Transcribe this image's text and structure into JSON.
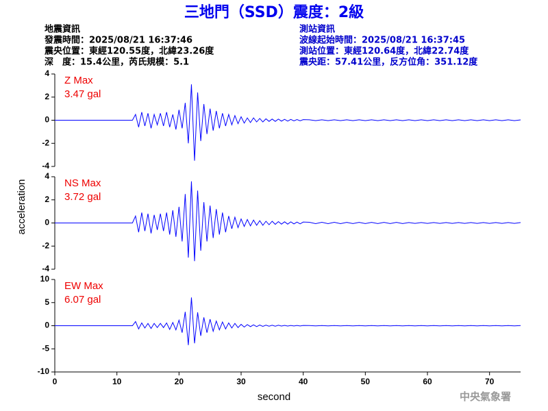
{
  "title": "三地門（SSD）震度：2級",
  "info_left": [
    "地震資訊",
    "發震時間：2025/08/21 16:37:46",
    "震央位置：東經120.55度，北緯23.26度",
    "深　度：15.4公里，芮氏規模：5.1"
  ],
  "info_right": [
    "測站資訊",
    "波線起始時間：2025/08/21 16:37:45",
    "測站位置：東經120.64度，北緯22.74度",
    "震央距：57.41公里，反方位角：351.12度"
  ],
  "y_label": "acceleration",
  "x_label": "second",
  "footer": "中央氣象署",
  "chart_data": [
    {
      "type": "line",
      "color": "#0000ff",
      "annotations": [
        "Z Max",
        "3.47 gal"
      ],
      "xlim": [
        0,
        75
      ],
      "ylim": [
        -4,
        4
      ],
      "yticks": [
        -4,
        -2,
        0,
        2,
        4
      ],
      "x": [
        0,
        12.5,
        13,
        13.5,
        14,
        14.5,
        15,
        15.5,
        16,
        16.5,
        17,
        17.5,
        18,
        18.5,
        19,
        19.5,
        20,
        20.5,
        21,
        21.5,
        22,
        22.5,
        23,
        23.5,
        24,
        24.5,
        25,
        25.5,
        26,
        26.5,
        27,
        27.5,
        28,
        28.5,
        29,
        29.5,
        30,
        30.5,
        31,
        31.5,
        32,
        32.5,
        33,
        33.5,
        34,
        34.5,
        35,
        35.5,
        36,
        36.5,
        37,
        37.5,
        38,
        38.5,
        39,
        39.5,
        40,
        41,
        42,
        43,
        44,
        45,
        46,
        47,
        48,
        49,
        50,
        51,
        52,
        53,
        54,
        55,
        56,
        57,
        58,
        59,
        60,
        61,
        62,
        63,
        64,
        65,
        66,
        67,
        68,
        69,
        70,
        71,
        72,
        73,
        74,
        75
      ],
      "values": [
        0,
        0,
        0.5,
        -0.6,
        0.7,
        -0.5,
        0.6,
        -0.7,
        0.5,
        -0.4,
        0.6,
        -0.5,
        0.7,
        -0.6,
        0.5,
        -0.8,
        0.9,
        -0.7,
        1.5,
        -2.0,
        3.1,
        -3.5,
        2.4,
        -1.8,
        1.4,
        -1.2,
        1.0,
        -0.9,
        0.8,
        -0.7,
        0.6,
        -0.5,
        0.5,
        -0.4,
        0.4,
        -0.3,
        0.3,
        -0.25,
        0.2,
        -0.2,
        0.2,
        -0.15,
        0.15,
        -0.15,
        0.12,
        -0.1,
        0.1,
        -0.1,
        0.1,
        -0.08,
        0.08,
        -0.08,
        0.07,
        -0.06,
        0.06,
        -0.05,
        0.05,
        0.04,
        -0.04,
        0.04,
        -0.04,
        0.04,
        -0.04,
        0.04,
        -0.04,
        0.04,
        -0.04,
        0.04,
        -0.04,
        0.04,
        -0.04,
        0.04,
        -0.04,
        0.04,
        -0.04,
        0.04,
        -0.04,
        0.04,
        -0.04,
        0.04,
        -0.04,
        0.04,
        -0.04,
        0.04,
        -0.04,
        0.04,
        -0.04,
        0.04,
        -0.04,
        0.04,
        -0.04,
        0.03
      ]
    },
    {
      "type": "line",
      "color": "#0000ff",
      "annotations": [
        "NS Max",
        "3.72 gal"
      ],
      "xlim": [
        0,
        75
      ],
      "ylim": [
        -4,
        4
      ],
      "yticks": [
        -4,
        -2,
        0,
        2,
        4
      ],
      "x": [
        0,
        12.5,
        13,
        13.5,
        14,
        14.5,
        15,
        15.5,
        16,
        16.5,
        17,
        17.5,
        18,
        18.5,
        19,
        19.5,
        20,
        20.5,
        21,
        21.5,
        22,
        22.5,
        23,
        23.5,
        24,
        24.5,
        25,
        25.5,
        26,
        26.5,
        27,
        27.5,
        28,
        28.5,
        29,
        29.5,
        30,
        30.5,
        31,
        31.5,
        32,
        32.5,
        33,
        33.5,
        34,
        34.5,
        35,
        35.5,
        36,
        36.5,
        37,
        37.5,
        38,
        38.5,
        39,
        39.5,
        40,
        41,
        42,
        43,
        44,
        45,
        46,
        47,
        48,
        49,
        50,
        51,
        52,
        53,
        54,
        55,
        56,
        57,
        58,
        59,
        60,
        61,
        62,
        63,
        64,
        65,
        66,
        67,
        68,
        69,
        70,
        71,
        72,
        73,
        74,
        75
      ],
      "values": [
        0,
        0,
        0.6,
        -0.8,
        0.9,
        -0.7,
        0.8,
        -0.9,
        0.7,
        -0.6,
        0.8,
        -0.7,
        0.9,
        -1.0,
        1.1,
        -1.2,
        1.4,
        -1.6,
        2.5,
        -3.0,
        3.6,
        -3.3,
        2.8,
        -2.4,
        1.8,
        -1.6,
        1.5,
        -1.3,
        1.2,
        -1.0,
        0.9,
        -0.8,
        0.6,
        -0.5,
        0.5,
        -0.4,
        0.35,
        -0.3,
        0.3,
        -0.25,
        0.25,
        -0.2,
        0.2,
        -0.2,
        0.15,
        -0.15,
        0.15,
        -0.12,
        0.12,
        -0.1,
        0.1,
        -0.1,
        0.1,
        -0.08,
        0.08,
        -0.08,
        0.08,
        0.06,
        -0.06,
        0.06,
        -0.06,
        0.06,
        -0.06,
        0.05,
        -0.05,
        0.05,
        -0.05,
        0.05,
        -0.05,
        0.05,
        -0.05,
        0.05,
        -0.05,
        0.04,
        -0.04,
        0.04,
        -0.04,
        0.04,
        -0.04,
        0.04,
        -0.04,
        0.04,
        -0.04,
        0.04,
        -0.04,
        0.04,
        -0.04,
        0.04,
        -0.04,
        0.04,
        -0.04,
        0.04
      ]
    },
    {
      "type": "line",
      "color": "#0000ff",
      "annotations": [
        "EW Max",
        "6.07 gal"
      ],
      "xlim": [
        0,
        75
      ],
      "ylim": [
        -10,
        10
      ],
      "yticks": [
        -10,
        -5,
        0,
        5,
        10
      ],
      "xticks": [
        0,
        10,
        20,
        30,
        40,
        50,
        60,
        70
      ],
      "x": [
        0,
        12.5,
        13,
        13.5,
        14,
        14.5,
        15,
        15.5,
        16,
        16.5,
        17,
        17.5,
        18,
        18.5,
        19,
        19.5,
        20,
        20.5,
        21,
        21.5,
        22,
        22.5,
        23,
        23.5,
        24,
        24.5,
        25,
        25.5,
        26,
        26.5,
        27,
        27.5,
        28,
        28.5,
        29,
        29.5,
        30,
        30.5,
        31,
        31.5,
        32,
        32.5,
        33,
        33.5,
        34,
        34.5,
        35,
        35.5,
        36,
        36.5,
        37,
        37.5,
        38,
        38.5,
        39,
        39.5,
        40,
        41,
        42,
        43,
        44,
        45,
        46,
        47,
        48,
        49,
        50,
        51,
        52,
        53,
        54,
        55,
        56,
        57,
        58,
        59,
        60,
        61,
        62,
        63,
        64,
        65,
        66,
        67,
        68,
        69,
        70,
        71,
        72,
        73,
        74,
        75
      ],
      "values": [
        0,
        0,
        0.9,
        -0.7,
        0.6,
        -0.5,
        0.5,
        -0.6,
        0.5,
        -0.4,
        0.5,
        -0.4,
        0.6,
        -0.8,
        0.7,
        -0.9,
        1.2,
        -1.5,
        3.0,
        -4.2,
        6.1,
        -3.8,
        2.9,
        -2.2,
        1.8,
        -1.5,
        1.4,
        -1.2,
        1.0,
        -0.9,
        0.8,
        -0.7,
        0.6,
        -0.5,
        0.5,
        -0.4,
        0.3,
        -0.3,
        0.25,
        -0.2,
        0.2,
        -0.2,
        0.15,
        -0.15,
        0.12,
        -0.1,
        0.1,
        -0.1,
        0.1,
        -0.08,
        0.08,
        -0.08,
        0.06,
        -0.06,
        0.06,
        -0.05,
        0.05,
        0.04,
        -0.04,
        0.04,
        -0.04,
        0.04,
        -0.04,
        0.04,
        -0.04,
        0.04,
        -0.04,
        0.04,
        -0.04,
        0.04,
        -0.04,
        0.04,
        -0.04,
        0.04,
        -0.04,
        0.04,
        -0.04,
        0.04,
        -0.04,
        0.04,
        -0.04,
        0.04,
        -0.04,
        0.04,
        -0.04,
        0.04,
        -0.04,
        0.04,
        -0.04,
        0.04,
        -0.04,
        0.03
      ]
    }
  ]
}
